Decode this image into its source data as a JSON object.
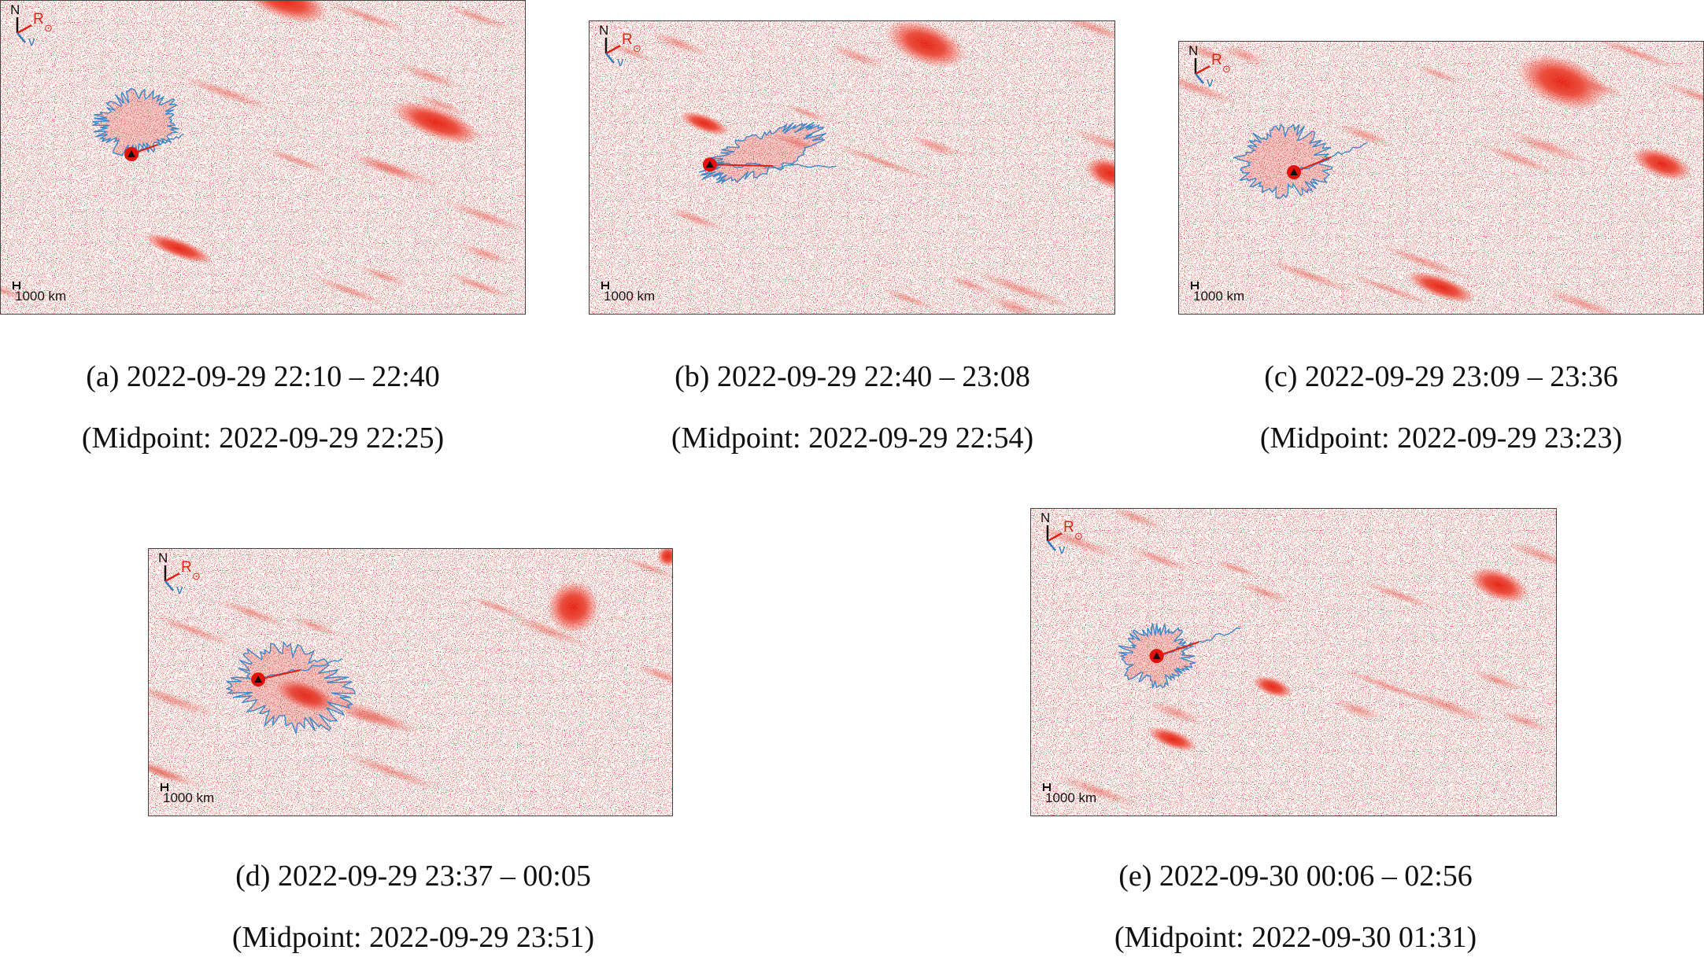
{
  "panels": [
    {
      "compass": {
        "north": "N",
        "sun": "R",
        "sun_symbol": "⊙",
        "velocity": "v"
      },
      "scale_label": "1000 km",
      "caption": "(a) 2022-09-29 22:10 – 22:40",
      "midpoint": "(Midpoint: 2022-09-29 22:25)"
    },
    {
      "compass": {
        "north": "N",
        "sun": "R",
        "sun_symbol": "⊙",
        "velocity": "v"
      },
      "scale_label": "1000 km",
      "caption": "(b) 2022-09-29 22:40 – 23:08",
      "midpoint": "(Midpoint: 2022-09-29 22:54)"
    },
    {
      "compass": {
        "north": "N",
        "sun": "R",
        "sun_symbol": "⊙",
        "velocity": "v"
      },
      "scale_label": "1000 km",
      "caption": "(c) 2022-09-29 23:09 – 23:36",
      "midpoint": "(Midpoint: 2022-09-29 23:23)"
    },
    {
      "compass": {
        "north": "N",
        "sun": "R",
        "sun_symbol": "⊙",
        "velocity": "v"
      },
      "scale_label": "1000 km",
      "caption": "(d) 2022-09-29 23:37 – 00:05",
      "midpoint": "(Midpoint: 2022-09-29 23:51)"
    },
    {
      "compass": {
        "north": "N",
        "sun": "R",
        "sun_symbol": "⊙",
        "velocity": "v"
      },
      "scale_label": "1000 km",
      "caption": "(e) 2022-09-30 00:06 – 02:56",
      "midpoint": "(Midpoint: 2022-09-30 01:31)"
    }
  ]
}
